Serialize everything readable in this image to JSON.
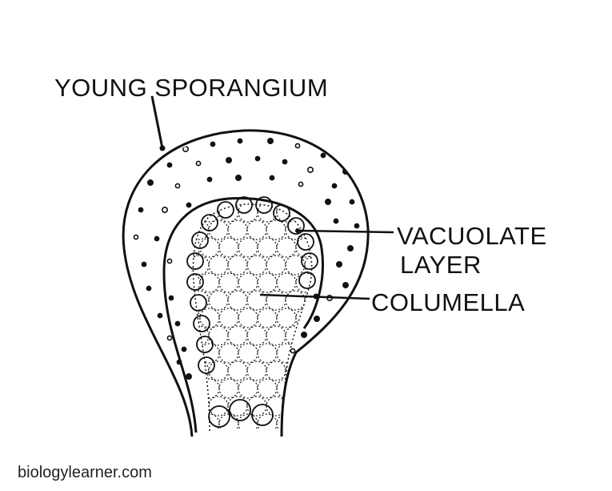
{
  "labels": {
    "young_sporangium": "YOUNG SPORANGIUM",
    "vacuolate_line1": "VACUOLATE",
    "vacuolate_line2": "LAYER",
    "columella": "COLUMELLA"
  },
  "credit": "biologylearner.com",
  "colors": {
    "ink": "#111111",
    "background": "#ffffff"
  }
}
